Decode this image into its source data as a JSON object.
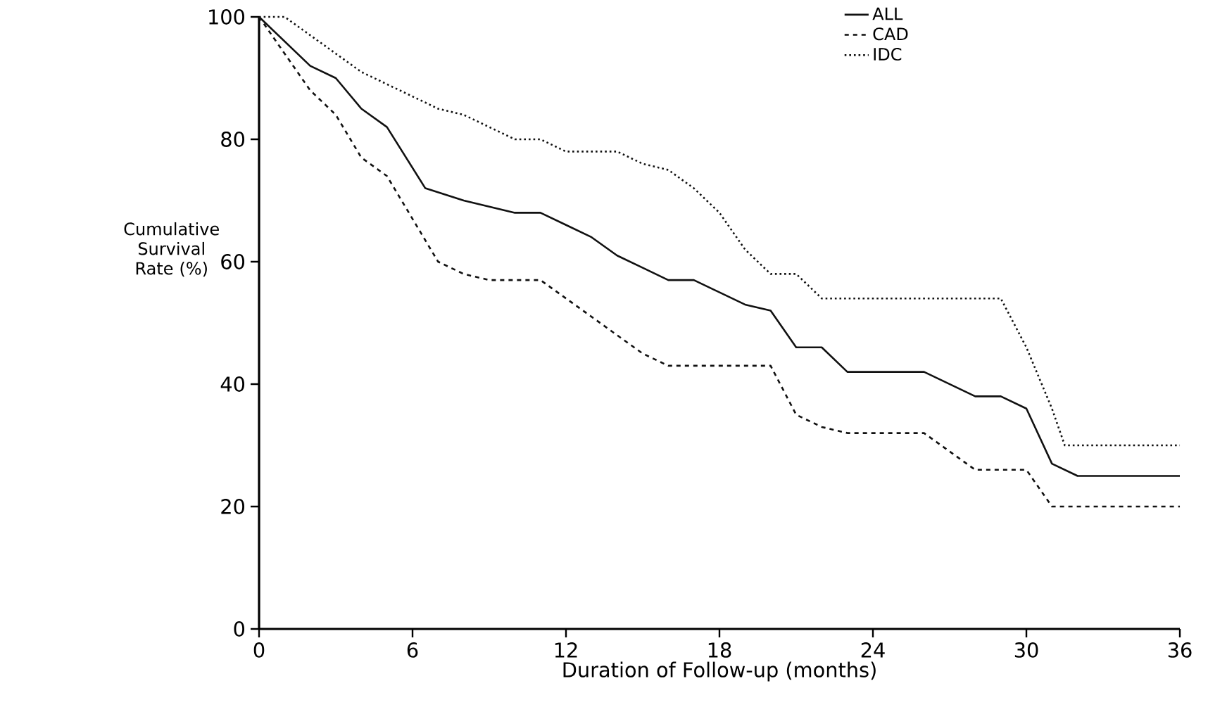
{
  "chart_data": {
    "type": "line",
    "xlabel": "Duration of Follow-up (months)",
    "ylabel": "Cumulative Survival Rate (%)",
    "xlim": [
      0,
      36
    ],
    "ylim": [
      0,
      100
    ],
    "xticks": [
      0,
      6,
      12,
      18,
      24,
      30,
      36
    ],
    "yticks": [
      0,
      20,
      40,
      60,
      80,
      100
    ],
    "grid": false,
    "legend": "top right",
    "marker": "none",
    "series": [
      {
        "name": "ALL",
        "color": "#111111",
        "line_style": "solid",
        "x": [
          0,
          1,
          2,
          3,
          4,
          5,
          6.5,
          8,
          9,
          10,
          11,
          12,
          13,
          14,
          15,
          16,
          17,
          18,
          19,
          20,
          21,
          22,
          23,
          24,
          25,
          26,
          27,
          28,
          29,
          30,
          31,
          32,
          36
        ],
        "values": [
          100,
          96,
          92,
          90,
          85,
          82,
          72,
          70,
          69,
          68,
          68,
          66,
          64,
          61,
          59,
          57,
          57,
          55,
          53,
          52,
          46,
          46,
          42,
          42,
          42,
          42,
          40,
          38,
          38,
          36,
          27,
          25,
          25
        ]
      },
      {
        "name": "CAD",
        "color": "#111111",
        "line_style": "dashed",
        "x": [
          0,
          1,
          2,
          3,
          4,
          5,
          6,
          7,
          8,
          9,
          10,
          11,
          12,
          13,
          14,
          15,
          16,
          17,
          18,
          19,
          20,
          21,
          22,
          23,
          24,
          25,
          26,
          27,
          28,
          29,
          30,
          31,
          36
        ],
        "values": [
          100,
          94,
          88,
          84,
          77,
          74,
          67,
          60,
          58,
          57,
          57,
          57,
          54,
          51,
          48,
          45,
          43,
          43,
          43,
          43,
          43,
          35,
          33,
          32,
          32,
          32,
          32,
          29,
          26,
          26,
          26,
          20,
          20
        ]
      },
      {
        "name": "IDC",
        "color": "#111111",
        "line_style": "dotted",
        "x": [
          0,
          1,
          2,
          3,
          4,
          5,
          6,
          7,
          8,
          9,
          10,
          11,
          12,
          13,
          14,
          15,
          16,
          17,
          18,
          19,
          20,
          21,
          22,
          23,
          24,
          25,
          26,
          27,
          28,
          29,
          30,
          31,
          31.5,
          36
        ],
        "values": [
          100,
          100,
          97,
          94,
          91,
          89,
          87,
          85,
          84,
          82,
          80,
          80,
          78,
          78,
          78,
          76,
          75,
          72,
          68,
          62,
          58,
          58,
          54,
          54,
          54,
          54,
          54,
          54,
          54,
          54,
          46,
          36,
          30,
          30
        ]
      }
    ]
  }
}
